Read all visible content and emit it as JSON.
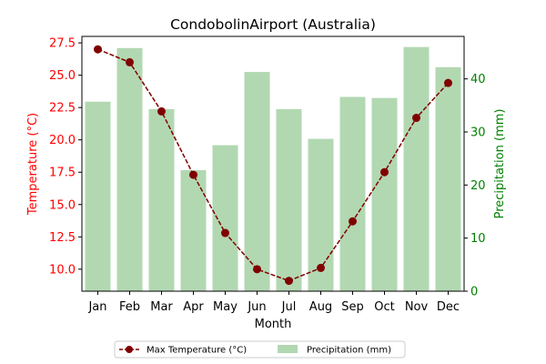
{
  "chart_data": {
    "type": "bar+line",
    "title": "CondobolinAirport (Australia)",
    "xlabel": "Month",
    "ylabel_left": "Temperature (°C)",
    "ylabel_right": "Precipitation (mm)",
    "categories": [
      "Jan",
      "Feb",
      "Mar",
      "Apr",
      "May",
      "Jun",
      "Jul",
      "Aug",
      "Sep",
      "Oct",
      "Nov",
      "Dec"
    ],
    "y_left_range": [
      8.3,
      28.0
    ],
    "y_left_ticks": [
      "10.0",
      "12.5",
      "15.0",
      "17.5",
      "20.0",
      "22.5",
      "25.0",
      "27.5"
    ],
    "y_right_range": [
      0,
      48
    ],
    "y_right_ticks": [
      "0",
      "10",
      "20",
      "30",
      "40"
    ],
    "series": [
      {
        "name": "Max Temperature (°C)",
        "type": "line",
        "axis": "left",
        "color": "#800000",
        "values": [
          27.0,
          26.0,
          22.2,
          17.3,
          12.8,
          10.0,
          9.1,
          10.1,
          13.7,
          17.5,
          21.7,
          24.4
        ]
      },
      {
        "name": "Precipitation (mm)",
        "type": "bar",
        "axis": "right",
        "color": "#b2d8b2",
        "values": [
          35.7,
          45.8,
          34.3,
          22.8,
          27.5,
          41.3,
          34.3,
          28.7,
          36.6,
          36.4,
          46.0,
          42.2
        ]
      }
    ],
    "left_axis_color": "#ff0000",
    "right_axis_color": "#008000",
    "grid": false,
    "legend_position": "bottom-center"
  }
}
